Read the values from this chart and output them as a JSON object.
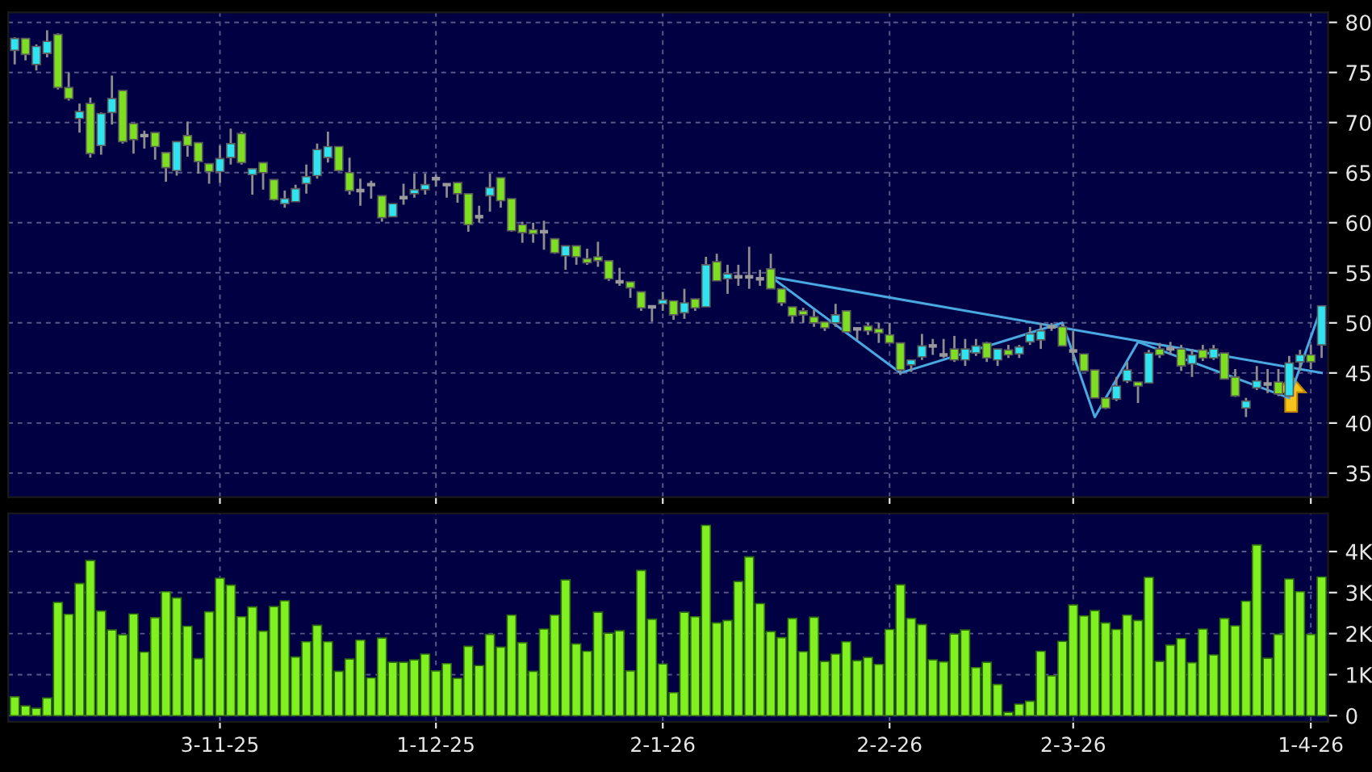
{
  "chart_data": [
    {
      "type": "candlestick",
      "categories": [
        null,
        null,
        null,
        null,
        null,
        null,
        null,
        null,
        null,
        null,
        null,
        null,
        null,
        null,
        null,
        null,
        null,
        null,
        null,
        null,
        null,
        null,
        null,
        null,
        null,
        null,
        null,
        null,
        null,
        null,
        null,
        null,
        null,
        null,
        null,
        null,
        null,
        null,
        null,
        null,
        null,
        null,
        null,
        null,
        null,
        null,
        null,
        null,
        null,
        null,
        null,
        null,
        null,
        null,
        null,
        null,
        null,
        null,
        null,
        null,
        null,
        null,
        null,
        null,
        null,
        null,
        null,
        null,
        null,
        null,
        null,
        null,
        null,
        null,
        null,
        null,
        null,
        null,
        null,
        null,
        null,
        null,
        null,
        null,
        null,
        null,
        null,
        null,
        null,
        null,
        null,
        null,
        null,
        null,
        null,
        null,
        null,
        null,
        null,
        null,
        null,
        null,
        null,
        null,
        null,
        null,
        null,
        null,
        null,
        null,
        null,
        null,
        null,
        null,
        null,
        null,
        null,
        null,
        null,
        null,
        null,
        null
      ],
      "ohlc": [
        [
          77.2,
          78.5,
          75.8,
          78.4
        ],
        [
          78.4,
          78.4,
          76.2,
          76.8
        ],
        [
          75.8,
          77.8,
          75.2,
          77.6
        ],
        [
          76.9,
          79.2,
          76.5,
          78.1
        ],
        [
          78.8,
          78.9,
          73.3,
          73.5
        ],
        [
          73.5,
          75.0,
          72.2,
          72.4
        ],
        [
          70.4,
          71.9,
          69.0,
          71.1
        ],
        [
          71.9,
          72.5,
          66.5,
          66.9
        ],
        [
          67.7,
          71.0,
          66.8,
          70.9
        ],
        [
          71.0,
          74.7,
          69.8,
          72.4
        ],
        [
          73.2,
          73.2,
          67.9,
          68.1
        ],
        [
          69.9,
          69.9,
          66.9,
          68.3
        ],
        [
          68.7,
          69.2,
          67.4,
          68.7
        ],
        [
          69.0,
          69.0,
          66.3,
          67.6
        ],
        [
          67.0,
          67.0,
          64.1,
          65.5
        ],
        [
          65.2,
          68.1,
          64.7,
          68.1
        ],
        [
          68.7,
          70.1,
          66.6,
          67.7
        ],
        [
          68.0,
          68.0,
          64.9,
          66.1
        ],
        [
          65.9,
          65.9,
          63.9,
          65.1
        ],
        [
          65.1,
          67.7,
          64.0,
          66.4
        ],
        [
          66.5,
          69.4,
          65.8,
          67.9
        ],
        [
          68.9,
          69.1,
          65.8,
          66.0
        ],
        [
          64.8,
          65.4,
          62.8,
          65.4
        ],
        [
          66.0,
          66.0,
          63.3,
          65.0
        ],
        [
          64.3,
          64.3,
          62.2,
          62.3
        ],
        [
          61.9,
          63.2,
          61.5,
          62.4
        ],
        [
          62.1,
          63.8,
          62.1,
          63.4
        ],
        [
          63.9,
          65.8,
          62.9,
          64.6
        ],
        [
          64.7,
          67.9,
          64.4,
          67.3
        ],
        [
          66.5,
          69.1,
          66.0,
          67.6
        ],
        [
          67.6,
          67.6,
          65.1,
          65.2
        ],
        [
          65.0,
          66.5,
          62.8,
          63.2
        ],
        [
          63.2,
          64.4,
          61.7,
          63.2
        ],
        [
          63.8,
          64.2,
          62.4,
          63.8
        ],
        [
          62.7,
          62.7,
          60.1,
          60.5
        ],
        [
          60.6,
          61.9,
          60.6,
          61.9
        ],
        [
          62.5,
          63.9,
          61.8,
          62.5
        ],
        [
          62.9,
          64.9,
          62.5,
          63.3
        ],
        [
          63.3,
          64.9,
          62.8,
          63.8
        ],
        [
          64.4,
          64.8,
          63.6,
          64.4
        ],
        [
          63.8,
          63.8,
          62.5,
          63.8
        ],
        [
          64.0,
          64.0,
          62.0,
          62.9
        ],
        [
          62.9,
          62.9,
          59.1,
          59.8
        ],
        [
          60.6,
          61.7,
          60.0,
          60.6
        ],
        [
          62.7,
          64.9,
          61.1,
          63.5
        ],
        [
          64.5,
          64.5,
          61.5,
          62.2
        ],
        [
          62.4,
          62.4,
          59.1,
          59.2
        ],
        [
          59.8,
          60.1,
          58.0,
          59.0
        ],
        [
          59.3,
          60.0,
          58.0,
          58.9
        ],
        [
          59.1,
          60.2,
          57.3,
          59.1
        ],
        [
          58.4,
          58.4,
          56.9,
          57.0
        ],
        [
          56.7,
          57.7,
          55.3,
          57.7
        ],
        [
          57.7,
          57.7,
          55.8,
          56.6
        ],
        [
          56.4,
          57.4,
          55.8,
          56.0
        ],
        [
          56.6,
          58.1,
          55.6,
          56.2
        ],
        [
          56.2,
          56.2,
          54.2,
          54.4
        ],
        [
          54.1,
          55.5,
          53.7,
          54.1
        ],
        [
          54.1,
          54.1,
          52.5,
          53.5
        ],
        [
          53.1,
          53.1,
          51.2,
          51.5
        ],
        [
          51.6,
          51.6,
          50.1,
          51.6
        ],
        [
          51.9,
          53.1,
          51.2,
          52.3
        ],
        [
          52.2,
          52.2,
          50.3,
          50.8
        ],
        [
          51.0,
          53.4,
          50.4,
          52.0
        ],
        [
          52.4,
          52.4,
          51.2,
          51.5
        ],
        [
          51.6,
          56.6,
          51.6,
          55.8
        ],
        [
          56.1,
          56.9,
          54.2,
          54.2
        ],
        [
          54.4,
          55.8,
          52.9,
          54.9
        ],
        [
          54.6,
          55.8,
          53.7,
          54.6
        ],
        [
          54.6,
          57.6,
          53.4,
          54.6
        ],
        [
          54.4,
          55.3,
          53.7,
          54.4
        ],
        [
          55.4,
          56.9,
          53.4,
          53.4
        ],
        [
          53.4,
          53.4,
          51.7,
          52.0
        ],
        [
          51.6,
          51.6,
          50.0,
          50.7
        ],
        [
          51.2,
          51.5,
          50.0,
          50.8
        ],
        [
          50.6,
          51.3,
          49.6,
          50.0
        ],
        [
          50.1,
          50.1,
          49.2,
          49.5
        ],
        [
          50.0,
          51.9,
          49.6,
          50.8
        ],
        [
          51.2,
          51.2,
          49.1,
          49.1
        ],
        [
          49.4,
          49.4,
          48.3,
          49.4
        ],
        [
          49.7,
          50.0,
          48.8,
          49.2
        ],
        [
          49.4,
          50.0,
          48.0,
          49.0
        ],
        [
          48.8,
          50.0,
          48.0,
          48.0
        ],
        [
          48.0,
          48.0,
          44.8,
          45.3
        ],
        [
          45.8,
          46.3,
          45.1,
          46.3
        ],
        [
          46.6,
          48.9,
          46.3,
          47.7
        ],
        [
          47.7,
          48.4,
          46.8,
          47.7
        ],
        [
          46.8,
          48.4,
          46.5,
          46.8
        ],
        [
          47.4,
          48.7,
          46.1,
          46.3
        ],
        [
          46.3,
          48.4,
          45.7,
          47.4
        ],
        [
          47.0,
          48.4,
          46.7,
          47.7
        ],
        [
          48.0,
          48.1,
          46.1,
          46.5
        ],
        [
          46.3,
          47.4,
          45.7,
          47.4
        ],
        [
          47.3,
          47.8,
          46.5,
          46.8
        ],
        [
          46.9,
          47.8,
          46.5,
          47.6
        ],
        [
          48.1,
          49.6,
          47.8,
          48.9
        ],
        [
          48.3,
          50.0,
          47.4,
          49.2
        ],
        [
          49.6,
          50.0,
          49.2,
          49.6
        ],
        [
          49.6,
          49.9,
          47.7,
          47.7
        ],
        [
          47.2,
          49.2,
          46.2,
          47.2
        ],
        [
          46.9,
          46.9,
          45.2,
          45.2
        ],
        [
          45.3,
          45.3,
          42.5,
          42.5
        ],
        [
          42.5,
          42.5,
          41.4,
          41.5
        ],
        [
          42.4,
          44.6,
          42.2,
          43.7
        ],
        [
          44.2,
          46.1,
          44.0,
          45.3
        ],
        [
          44.1,
          44.1,
          42.0,
          43.7
        ],
        [
          44.0,
          47.3,
          44.0,
          47.0
        ],
        [
          47.4,
          48.0,
          46.5,
          46.8
        ],
        [
          47.4,
          48.1,
          46.8,
          47.4
        ],
        [
          47.4,
          47.8,
          45.2,
          45.7
        ],
        [
          45.9,
          47.4,
          44.6,
          46.8
        ],
        [
          47.3,
          47.8,
          46.2,
          46.5
        ],
        [
          46.5,
          47.8,
          46.3,
          47.4
        ],
        [
          47.0,
          47.0,
          44.4,
          44.4
        ],
        [
          44.6,
          45.4,
          42.6,
          42.7
        ],
        [
          41.5,
          42.5,
          40.6,
          42.2
        ],
        [
          43.5,
          45.7,
          43.3,
          44.2
        ],
        [
          43.9,
          45.4,
          43.0,
          43.9
        ],
        [
          44.1,
          45.4,
          42.7,
          42.9
        ],
        [
          42.7,
          46.7,
          42.5,
          46.0
        ],
        [
          46.1,
          47.3,
          45.2,
          46.8
        ],
        [
          46.8,
          47.8,
          45.4,
          46.1
        ],
        [
          47.8,
          51.7,
          46.5,
          51.7
        ]
      ],
      "colors": [
        "#2fe3f0",
        "#7ede22",
        "#2fe3f0",
        "#2fe3f0",
        "#7ede22",
        "#7ede22",
        "#2fe3f0",
        "#7ede22",
        "#2fe3f0",
        "#2fe3f0",
        "#7ede22",
        "#7ede22",
        "#9a9a9a",
        "#7ede22",
        "#7ede22",
        "#2fe3f0",
        "#7ede22",
        "#7ede22",
        "#7ede22",
        "#2fe3f0",
        "#2fe3f0",
        "#7ede22",
        "#2fe3f0",
        "#7ede22",
        "#7ede22",
        "#2fe3f0",
        "#2fe3f0",
        "#2fe3f0",
        "#2fe3f0",
        "#2fe3f0",
        "#7ede22",
        "#7ede22",
        "#9a9a9a",
        "#9a9a9a",
        "#7ede22",
        "#2fe3f0",
        "#9a9a9a",
        "#2fe3f0",
        "#2fe3f0",
        "#9a9a9a",
        "#9a9a9a",
        "#7ede22",
        "#7ede22",
        "#9a9a9a",
        "#2fe3f0",
        "#7ede22",
        "#7ede22",
        "#7ede22",
        "#7ede22",
        "#9a9a9a",
        "#7ede22",
        "#2fe3f0",
        "#7ede22",
        "#7ede22",
        "#7ede22",
        "#7ede22",
        "#9a9a9a",
        "#7ede22",
        "#7ede22",
        "#9a9a9a",
        "#2fe3f0",
        "#7ede22",
        "#2fe3f0",
        "#7ede22",
        "#2fe3f0",
        "#7ede22",
        "#2fe3f0",
        "#9a9a9a",
        "#9a9a9a",
        "#9a9a9a",
        "#7ede22",
        "#7ede22",
        "#7ede22",
        "#7ede22",
        "#7ede22",
        "#7ede22",
        "#2fe3f0",
        "#7ede22",
        "#9a9a9a",
        "#7ede22",
        "#7ede22",
        "#7ede22",
        "#7ede22",
        "#2fe3f0",
        "#2fe3f0",
        "#9a9a9a",
        "#9a9a9a",
        "#7ede22",
        "#2fe3f0",
        "#2fe3f0",
        "#7ede22",
        "#2fe3f0",
        "#7ede22",
        "#2fe3f0",
        "#2fe3f0",
        "#2fe3f0",
        "#9a9a9a",
        "#7ede22",
        "#9a9a9a",
        "#7ede22",
        "#7ede22",
        "#7ede22",
        "#2fe3f0",
        "#2fe3f0",
        "#7ede22",
        "#2fe3f0",
        "#7ede22",
        "#9a9a9a",
        "#7ede22",
        "#2fe3f0",
        "#7ede22",
        "#2fe3f0",
        "#7ede22",
        "#7ede22",
        "#2fe3f0",
        "#2fe3f0",
        "#9a9a9a",
        "#7ede22",
        "#2fe3f0",
        "#2fe3f0",
        "#7ede22",
        "#2fe3f0"
      ],
      "series": [
        {
          "type": "line",
          "color": "#4aa8e0",
          "values": [
            null,
            null,
            null,
            null,
            null,
            null,
            null,
            null,
            null,
            null,
            null,
            null,
            null,
            null,
            null,
            null,
            null,
            null,
            null,
            null,
            null,
            null,
            null,
            null,
            null,
            null,
            null,
            null,
            null,
            null,
            null,
            null,
            null,
            null,
            null,
            null,
            null,
            null,
            null,
            null,
            null,
            null,
            null,
            null,
            null,
            null,
            null,
            null,
            null,
            null,
            null,
            null,
            null,
            null,
            null,
            null,
            null,
            null,
            null,
            null,
            null,
            null,
            null,
            null,
            null,
            null,
            null,
            null,
            null,
            null,
            54.6,
            null,
            null,
            null,
            null,
            null,
            null,
            null,
            null,
            null,
            null,
            null,
            null,
            null,
            null,
            null,
            null,
            null,
            null,
            null,
            null,
            null,
            null,
            null,
            null,
            null,
            null,
            null,
            null,
            null,
            null,
            null,
            null,
            null,
            null,
            null,
            null,
            null,
            null,
            null,
            null,
            null,
            null,
            null,
            null,
            null,
            null,
            null,
            null,
            null,
            null,
            45.0
          ]
        },
        {
          "type": "line",
          "color": "#4aa8e0",
          "values": [
            null,
            null,
            null,
            null,
            null,
            null,
            null,
            null,
            null,
            null,
            null,
            null,
            null,
            null,
            null,
            null,
            null,
            null,
            null,
            null,
            null,
            null,
            null,
            null,
            null,
            null,
            null,
            null,
            null,
            null,
            null,
            null,
            null,
            null,
            null,
            null,
            null,
            null,
            null,
            null,
            null,
            null,
            null,
            null,
            null,
            null,
            null,
            null,
            null,
            null,
            null,
            null,
            null,
            null,
            null,
            null,
            null,
            null,
            null,
            null,
            null,
            null,
            null,
            null,
            null,
            null,
            null,
            null,
            null,
            null,
            54.6,
            null,
            null,
            null,
            null,
            null,
            null,
            null,
            null,
            null,
            null,
            null,
            45.0,
            null,
            null,
            null,
            null,
            null,
            null,
            null,
            null,
            null,
            null,
            null,
            null,
            null,
            null,
            50.0,
            null,
            null,
            40.6,
            null,
            null,
            null,
            48.1,
            null,
            null,
            null,
            null,
            null,
            null,
            null,
            null,
            null,
            null,
            null,
            null,
            null,
            42.5,
            null,
            null,
            51.6
          ]
        }
      ],
      "ylim": [
        32.6,
        81
      ],
      "yticks": [
        35,
        40,
        45,
        50,
        55,
        60,
        65,
        70,
        75,
        80
      ],
      "grid": true
    },
    {
      "type": "bar",
      "categories": [
        null,
        null,
        null,
        null,
        null,
        null,
        null,
        null,
        null,
        null,
        null,
        null,
        null,
        null,
        null,
        null,
        null,
        null,
        null,
        "3-11-25",
        null,
        null,
        null,
        null,
        null,
        null,
        null,
        null,
        null,
        null,
        null,
        null,
        null,
        null,
        null,
        null,
        null,
        null,
        null,
        "1-12-25",
        null,
        null,
        null,
        null,
        null,
        null,
        null,
        null,
        null,
        null,
        null,
        null,
        null,
        null,
        null,
        null,
        null,
        null,
        null,
        null,
        "2-1-26",
        null,
        null,
        null,
        null,
        null,
        null,
        null,
        null,
        null,
        null,
        null,
        null,
        null,
        null,
        null,
        null,
        null,
        null,
        null,
        null,
        "2-2-26",
        null,
        null,
        null,
        null,
        null,
        null,
        null,
        null,
        null,
        null,
        null,
        null,
        null,
        null,
        null,
        null,
        "2-3-26",
        null,
        null,
        null,
        null,
        null,
        null,
        null,
        null,
        null,
        null,
        null,
        null,
        null,
        null,
        null,
        null,
        null,
        null,
        null,
        null,
        null,
        "1-4-26",
        null
      ],
      "values": [
        0.46,
        0.24,
        0.18,
        0.43,
        2.76,
        2.47,
        3.22,
        3.78,
        2.55,
        2.09,
        1.97,
        2.48,
        1.55,
        2.39,
        3.02,
        2.87,
        2.18,
        1.39,
        2.53,
        3.35,
        3.18,
        2.41,
        2.65,
        2.06,
        2.66,
        2.8,
        1.43,
        1.8,
        2.2,
        1.8,
        1.08,
        1.38,
        1.84,
        0.92,
        1.89,
        1.3,
        1.3,
        1.36,
        1.5,
        1.09,
        1.27,
        0.91,
        1.69,
        1.22,
        1.98,
        1.67,
        2.45,
        1.78,
        1.08,
        2.11,
        2.45,
        3.31,
        1.75,
        1.57,
        2.52,
        2.01,
        2.07,
        1.09,
        3.54,
        2.35,
        1.26,
        0.56,
        2.52,
        2.41,
        4.64,
        2.26,
        2.32,
        3.27,
        3.87,
        2.73,
        2.05,
        1.9,
        2.37,
        1.56,
        2.4,
        1.32,
        1.5,
        1.8,
        1.34,
        1.42,
        1.25,
        2.1,
        3.19,
        2.37,
        2.22,
        1.36,
        1.31,
        1.99,
        2.09,
        1.17,
        1.3,
        0.76,
        0.08,
        0.28,
        0.35,
        1.57,
        0.97,
        1.81,
        2.7,
        2.43,
        2.56,
        2.26,
        2.1,
        2.45,
        2.32,
        3.37,
        1.32,
        1.72,
        1.88,
        1.29,
        2.11,
        1.48,
        2.37,
        2.19,
        2.79,
        4.16,
        1.4,
        1.98,
        3.33,
        3.02,
        1.98,
        3.38
      ],
      "color": "#80f020",
      "ylim": [
        -0.15,
        4.93
      ],
      "yticks": [
        0,
        {
          "value": 1,
          "label": "1K"
        },
        {
          "value": 2,
          "label": "2K"
        },
        {
          "value": 3,
          "label": "3K"
        },
        {
          "value": 4,
          "label": "4K"
        }
      ],
      "grid": true
    }
  ]
}
